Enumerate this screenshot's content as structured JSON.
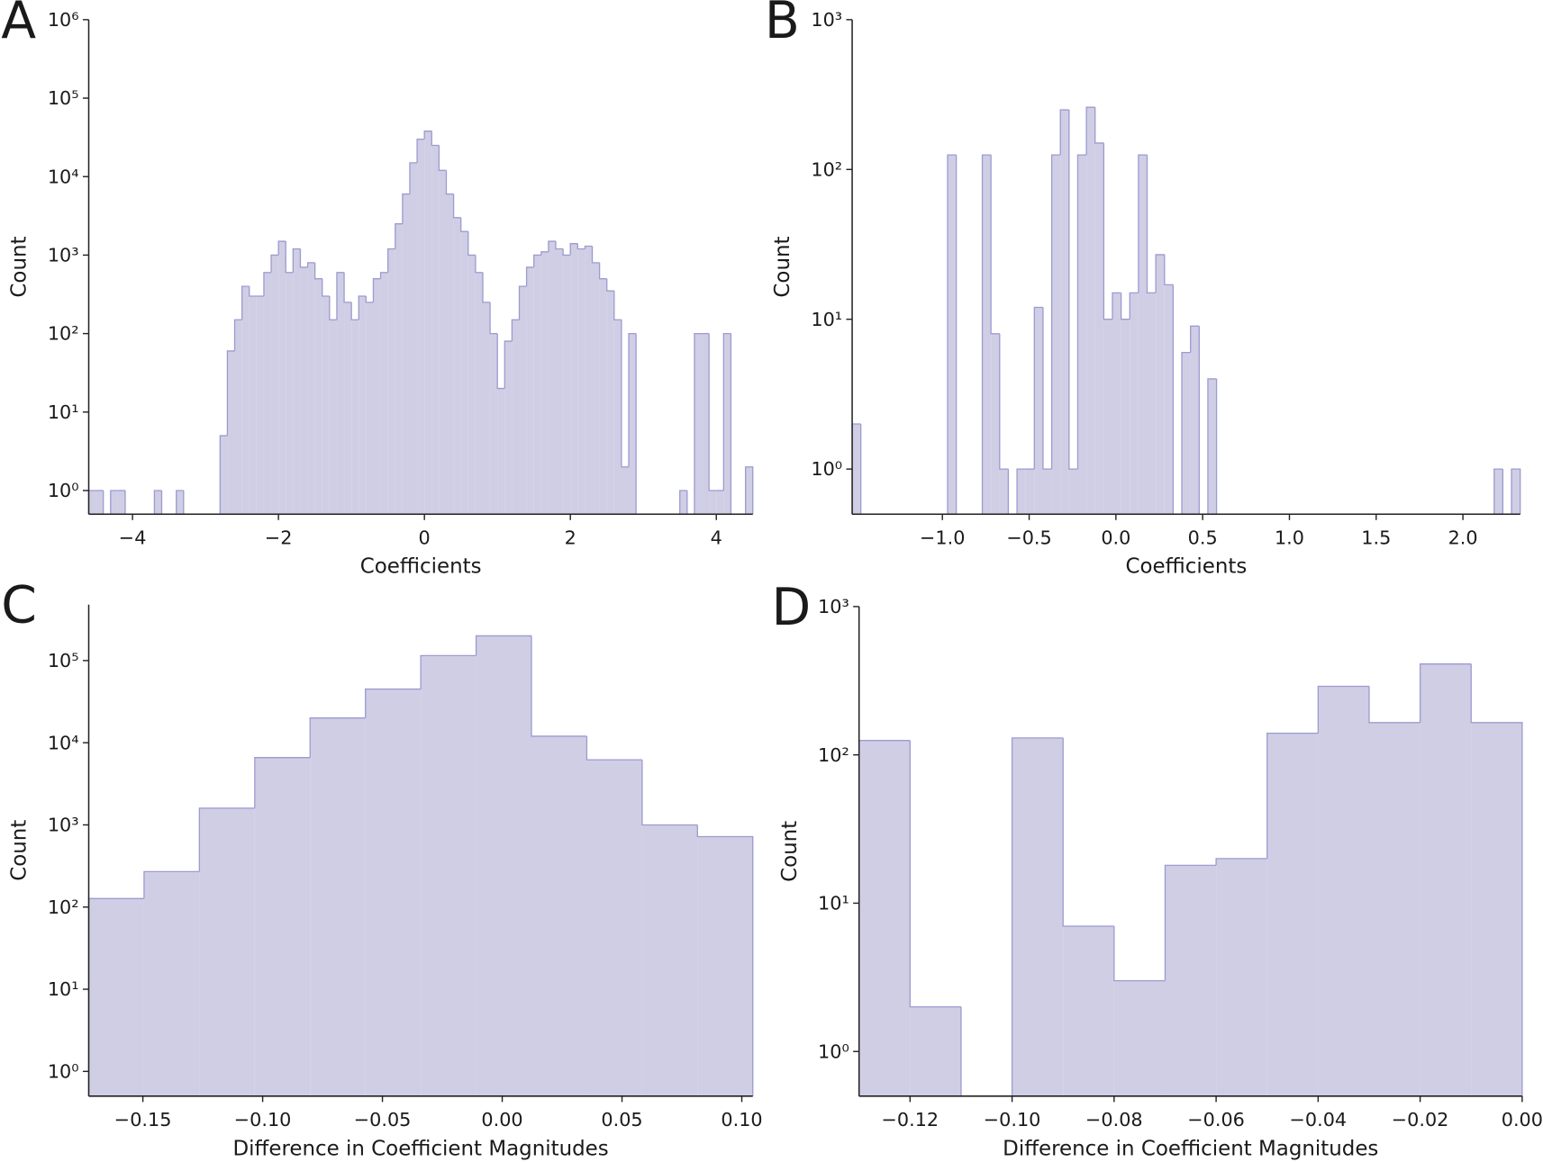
{
  "chart_data": [
    {
      "type": "histogram",
      "panel_label": "A",
      "x_label": "Coefficients",
      "y_label": "Count",
      "color": "#cfcee5",
      "edgecolor": "#9c9bd0",
      "log_y": true,
      "bins": [
        -4.6,
        -4.5,
        -4.4,
        -4.3,
        -4.2,
        -4.1,
        -4.0,
        -3.9,
        -3.8,
        -3.7,
        -3.6,
        -3.5,
        -3.4,
        -3.3,
        -3.2,
        -3.1,
        -3.0,
        -2.9,
        -2.8,
        -2.7,
        -2.6,
        -2.5,
        -2.4,
        -2.3,
        -2.2,
        -2.1,
        -2.0,
        -1.9,
        -1.8,
        -1.7,
        -1.6,
        -1.5,
        -1.4,
        -1.3,
        -1.2,
        -1.1,
        -1.0,
        -0.9,
        -0.8,
        -0.7,
        -0.6,
        -0.5,
        -0.4,
        -0.3,
        -0.2,
        -0.1,
        0,
        0.1,
        0.2,
        0.3,
        0.4,
        0.5,
        0.6,
        0.7,
        0.8,
        0.9,
        1.0,
        1.1,
        1.2,
        1.3,
        1.4,
        1.5,
        1.6,
        1.7,
        1.8,
        1.9,
        2.0,
        2.1,
        2.2,
        2.3,
        2.4,
        2.5,
        2.6,
        2.7,
        2.8,
        2.9,
        3.0,
        3.1,
        3.2,
        3.3,
        3.4,
        3.5,
        3.6,
        3.7,
        3.8,
        3.9,
        4.0,
        4.1,
        4.2,
        4.3,
        4.4,
        4.5
      ],
      "values": [
        1,
        1,
        0,
        1,
        1,
        0,
        0,
        0,
        0,
        1,
        0,
        0,
        1,
        0,
        0,
        0,
        0,
        0,
        5,
        60,
        150,
        400,
        300,
        300,
        600,
        1000,
        1500,
        600,
        1200,
        700,
        800,
        500,
        300,
        150,
        600,
        250,
        150,
        300,
        250,
        500,
        600,
        1200,
        2500,
        6000,
        15000,
        30000,
        38000,
        25000,
        12000,
        6000,
        3000,
        2000,
        1000,
        600,
        250,
        100,
        20,
        80,
        150,
        400,
        700,
        1000,
        1100,
        1500,
        1200,
        1000,
        1400,
        1200,
        1300,
        800,
        500,
        350,
        150,
        2,
        100,
        0,
        0,
        0,
        0,
        0,
        0,
        1,
        0,
        100,
        100,
        1,
        1,
        100,
        0,
        0,
        2
      ],
      "xlim": [
        -4.6,
        4.5
      ],
      "ylim": [
        0.5,
        1000000
      ],
      "xticks": [
        {
          "value": -4,
          "label": "−4"
        },
        {
          "value": -2,
          "label": "−2"
        },
        0,
        2,
        4
      ],
      "yticks": [
        {
          "value": 1,
          "label": "10⁰"
        },
        {
          "value": 10,
          "label": "10¹"
        },
        {
          "value": 100,
          "label": "10²"
        },
        {
          "value": 1000,
          "label": "10³"
        },
        {
          "value": 10000,
          "label": "10⁴"
        },
        {
          "value": 100000,
          "label": "10⁵"
        },
        {
          "value": 1000000,
          "label": "10⁶"
        }
      ]
    },
    {
      "type": "histogram",
      "panel_label": "B",
      "x_label": "Coefficients",
      "y_label": "Count",
      "color": "#cfcee5",
      "edgecolor": "#9c9bd0",
      "log_y": true,
      "bins": [
        -1.52,
        -1.47,
        -1.42,
        -1.37,
        -1.32,
        -1.27,
        -1.22,
        -1.17,
        -1.12,
        -1.07,
        -1.02,
        -0.97,
        -0.92,
        -0.87,
        -0.82,
        -0.77,
        -0.72,
        -0.67,
        -0.62,
        -0.57,
        -0.52,
        -0.47,
        -0.42,
        -0.37,
        -0.32,
        -0.27,
        -0.22,
        -0.17,
        -0.12,
        -0.07,
        -0.02,
        0.03,
        0.08,
        0.13,
        0.18,
        0.23,
        0.28,
        0.33,
        0.38,
        0.43,
        0.48,
        0.53,
        0.58,
        0.63,
        0.68,
        0.73,
        0.78,
        0.83,
        0.88,
        0.93,
        0.98,
        1.03,
        1.08,
        1.13,
        1.18,
        1.23,
        1.28,
        1.33,
        1.38,
        1.43,
        1.48,
        1.53,
        1.58,
        1.63,
        1.68,
        1.73,
        1.78,
        1.83,
        1.88,
        1.93,
        1.98,
        2.03,
        2.08,
        2.13,
        2.18,
        2.23,
        2.28,
        2.33
      ],
      "values": [
        2,
        0,
        0,
        0,
        0,
        0,
        0,
        0,
        0,
        0,
        0,
        125,
        0,
        0,
        0,
        125,
        8,
        1,
        0,
        1,
        1,
        12,
        1,
        125,
        250,
        1,
        125,
        260,
        150,
        10,
        15,
        10,
        15,
        125,
        15,
        27,
        17,
        0,
        6,
        9,
        0,
        4,
        0,
        0,
        0,
        0,
        0,
        0,
        0,
        0,
        0,
        0,
        0,
        0,
        0,
        0,
        0,
        0,
        0,
        0,
        0,
        0,
        0,
        0,
        0,
        0,
        0,
        0,
        0,
        0,
        0,
        0,
        0,
        0,
        1,
        0,
        1
      ],
      "xlim": [
        -1.52,
        2.33
      ],
      "ylim": [
        0.5,
        1000
      ],
      "xticks": [
        {
          "value": -1.0,
          "label": "−1.0"
        },
        {
          "value": -0.5,
          "label": "−0.5"
        },
        {
          "value": 0,
          "label": "0.0"
        },
        0.5,
        {
          "value": 1,
          "label": "1.0"
        },
        1.5,
        {
          "value": 2,
          "label": "2.0"
        }
      ],
      "yticks": [
        {
          "value": 1,
          "label": "10⁰"
        },
        {
          "value": 10,
          "label": "10¹"
        },
        {
          "value": 100,
          "label": "10²"
        },
        {
          "value": 1000,
          "label": "10³"
        }
      ]
    },
    {
      "type": "histogram",
      "panel_label": "C",
      "x_label": "Difference in Coefficient Magnitudes",
      "y_label": "Count",
      "color": "#cfcee5",
      "edgecolor": "#9c9bd0",
      "log_y": true,
      "bins": [
        -0.1726,
        -0.1495,
        -0.1264,
        -0.1033,
        -0.0802,
        -0.0571,
        -0.034,
        -0.0109,
        0.0122,
        0.0353,
        0.0584,
        0.0815,
        0.1046
      ],
      "values": [
        127,
        270,
        1600,
        6600,
        20000,
        45000,
        115000,
        200000,
        12000,
        6200,
        1000,
        720
      ],
      "xlim": [
        -0.1726,
        0.1046
      ],
      "ylim": [
        0.5,
        480000
      ],
      "xticks": [
        {
          "value": -0.15,
          "label": "−0.15"
        },
        {
          "value": -0.1,
          "label": "−0.10"
        },
        {
          "value": -0.05,
          "label": "−0.05"
        },
        {
          "value": 0,
          "label": "0.00"
        },
        0.05,
        {
          "value": 0.1,
          "label": "0.10"
        }
      ],
      "yticks": [
        {
          "value": 1,
          "label": "10⁰"
        },
        {
          "value": 10,
          "label": "10¹"
        },
        {
          "value": 100,
          "label": "10²"
        },
        {
          "value": 1000,
          "label": "10³"
        },
        {
          "value": 10000,
          "label": "10⁴"
        },
        {
          "value": 100000,
          "label": "10⁵"
        }
      ]
    },
    {
      "type": "histogram",
      "panel_label": "D",
      "x_label": "Difference in Coefficient Magnitudes",
      "y_label": "Count",
      "color": "#cfcee5",
      "edgecolor": "#9c9bd0",
      "log_y": true,
      "bins": [
        -0.13,
        -0.12,
        -0.11,
        -0.1,
        -0.09,
        -0.08,
        -0.07,
        -0.06,
        -0.05,
        -0.04,
        -0.03,
        -0.02,
        -0.01,
        0
      ],
      "values": [
        125,
        2,
        0,
        130,
        7,
        3,
        18,
        20,
        140,
        290,
        165,
        410,
        165
      ],
      "xlim": [
        -0.13,
        0
      ],
      "ylim": [
        0.5,
        1000
      ],
      "xticks": [
        {
          "value": -0.12,
          "label": "−0.12"
        },
        {
          "value": -0.1,
          "label": "−0.10"
        },
        {
          "value": -0.08,
          "label": "−0.08"
        },
        {
          "value": -0.06,
          "label": "−0.06"
        },
        {
          "value": -0.04,
          "label": "−0.04"
        },
        {
          "value": -0.02,
          "label": "−0.02"
        },
        {
          "value": 0,
          "label": "0.00"
        }
      ],
      "yticks": [
        {
          "value": 1,
          "label": "10⁰"
        },
        {
          "value": 10,
          "label": "10¹"
        },
        {
          "value": 100,
          "label": "10²"
        },
        {
          "value": 1000,
          "label": "10³"
        }
      ]
    }
  ]
}
